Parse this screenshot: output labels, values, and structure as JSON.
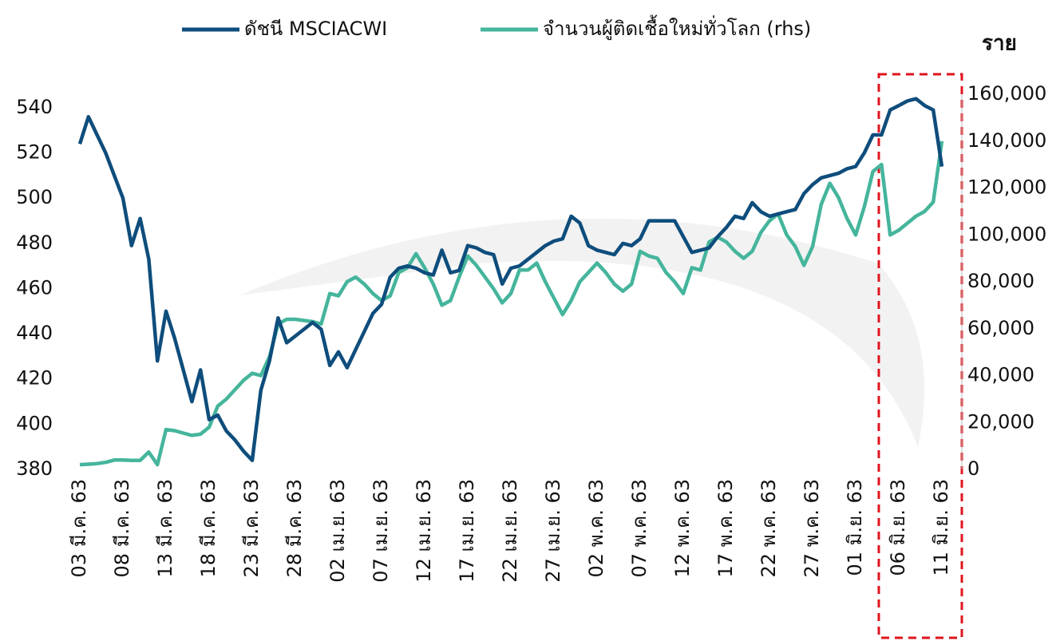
{
  "chart_data": {
    "type": "line",
    "categories": [
      "03 มี.ค. 63",
      null,
      null,
      null,
      null,
      "08 มี.ค. 63",
      null,
      null,
      null,
      null,
      "13 มี.ค. 63",
      null,
      null,
      null,
      null,
      "18 มี.ค. 63",
      null,
      null,
      null,
      null,
      "23 มี.ค. 63",
      null,
      null,
      null,
      null,
      "28 มี.ค. 63",
      null,
      null,
      null,
      null,
      "02 เม.ย. 63",
      null,
      null,
      null,
      null,
      "07 เม.ย. 63",
      null,
      null,
      null,
      null,
      "12 เม.ย. 63",
      null,
      null,
      null,
      null,
      "17 เม.ย. 63",
      null,
      null,
      null,
      null,
      "22 เม.ย. 63",
      null,
      null,
      null,
      null,
      "27 เม.ย. 63",
      null,
      null,
      null,
      null,
      "02 พ.ค. 63",
      null,
      null,
      null,
      null,
      "07 พ.ค. 63",
      null,
      null,
      null,
      null,
      "12 พ.ค. 63",
      null,
      null,
      null,
      null,
      "17 พ.ค. 63",
      null,
      null,
      null,
      null,
      "22 พ.ค. 63",
      null,
      null,
      null,
      null,
      "27 พ.ค. 63",
      null,
      null,
      null,
      null,
      "01 มิ.ย. 63",
      null,
      null,
      null,
      null,
      "06 มิ.ย. 63",
      null,
      null,
      null,
      null,
      "11 มิ.ย. 63"
    ],
    "series": [
      {
        "name": "ดัชนี MSCIACWI",
        "color": "#0e4d7c",
        "values": [
          524,
          536,
          528,
          520,
          510,
          500,
          479,
          491,
          473,
          428,
          450,
          438,
          424,
          410,
          424,
          402,
          404,
          397,
          393,
          388,
          384,
          415,
          428,
          447,
          436,
          439,
          442,
          445,
          442,
          426,
          432,
          425,
          433,
          441,
          449,
          453,
          465,
          469,
          470,
          469,
          467,
          466,
          477,
          467,
          468,
          479,
          478,
          476,
          475,
          462,
          469,
          470,
          473,
          476,
          479,
          481,
          482,
          492,
          489,
          479,
          477,
          476,
          475,
          480,
          479,
          482,
          490,
          490,
          490,
          490,
          483,
          476,
          477,
          478,
          483,
          487,
          492,
          491,
          498,
          494,
          492,
          493,
          494,
          495,
          502,
          506,
          509,
          510,
          511,
          513,
          514,
          520,
          528,
          528,
          539,
          541,
          543,
          544,
          541,
          539,
          514
        ]
      },
      {
        "name": "จำนวนผู้ติดเชื้อใหม่ทั่วโลก (rhs)",
        "color": "#45b59c",
        "axis": "y2",
        "values": [
          2000,
          2200,
          2500,
          3000,
          4000,
          4000,
          3800,
          3800,
          7400,
          2000,
          17000,
          16500,
          15500,
          14500,
          15000,
          18000,
          27000,
          30000,
          34000,
          38000,
          41000,
          40000,
          48000,
          62000,
          64000,
          64000,
          63500,
          63000,
          62000,
          75000,
          74000,
          80000,
          82000,
          79000,
          75000,
          72000,
          74000,
          84000,
          86000,
          92000,
          86000,
          79000,
          70000,
          72000,
          82000,
          91000,
          87000,
          82000,
          77000,
          71000,
          75000,
          85000,
          85000,
          88000,
          80000,
          73000,
          66000,
          72000,
          80000,
          84000,
          88000,
          84000,
          79000,
          76000,
          79000,
          93000,
          91000,
          90000,
          84000,
          80000,
          75000,
          86000,
          85000,
          97000,
          99000,
          97000,
          93000,
          90000,
          93000,
          101000,
          106000,
          109000,
          100000,
          95000,
          87000,
          95000,
          113000,
          122000,
          116000,
          107000,
          100000,
          112000,
          127000,
          130000,
          100000,
          102000,
          105000,
          108000,
          110000,
          114000,
          140000
        ]
      }
    ],
    "ylim": [
      380,
      546
    ],
    "yticks": [
      380,
      400,
      420,
      440,
      460,
      480,
      500,
      520,
      540
    ],
    "y2label": "ราย",
    "y2lim": [
      0,
      160000
    ],
    "y2ticks": [
      0,
      {
        "value": 20000,
        "label": "20,000"
      },
      {
        "value": 40000,
        "label": "40,000"
      },
      {
        "value": 60000,
        "label": "60,000"
      },
      {
        "value": 80000,
        "label": "80,000"
      },
      {
        "value": 100000,
        "label": "100,000"
      },
      {
        "value": 120000,
        "label": "120,000"
      },
      {
        "value": 140000,
        "label": "140,000"
      },
      {
        "value": 160000,
        "label": "160,000"
      }
    ],
    "legend": "top"
  }
}
